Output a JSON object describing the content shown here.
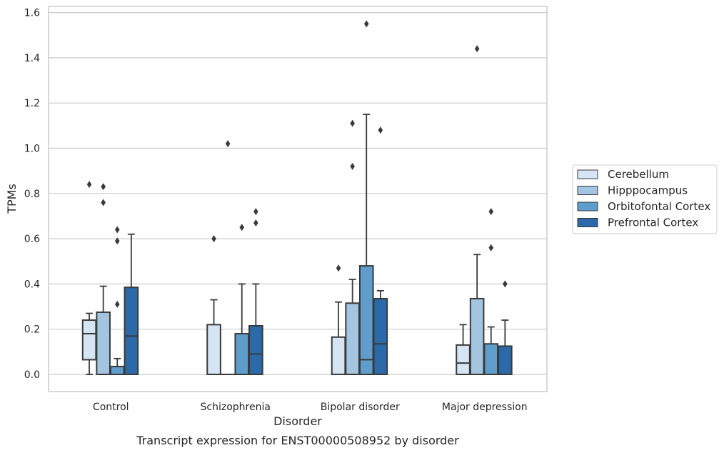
{
  "chart_data": {
    "type": "boxplot",
    "title": "",
    "caption": "Transcript expression for ENST00000508952 by disorder",
    "xlabel": "Disorder",
    "ylabel": "TPMs",
    "ylim": [
      -0.075,
      1.63
    ],
    "yticks": [
      0.0,
      0.2,
      0.4,
      0.6,
      0.8,
      1.0,
      1.2,
      1.4,
      1.6
    ],
    "ytick_labels": [
      "0.0",
      "0.2",
      "0.4",
      "0.6",
      "0.8",
      "1.0",
      "1.2",
      "1.4",
      "1.6"
    ],
    "grid": "horizontal",
    "legend_position": "right",
    "categories": [
      "Control",
      "Schizophrenia",
      "Bipolar disorder",
      "Major depression"
    ],
    "series": [
      {
        "name": "Cerebellum",
        "color": "#d6e5f3",
        "boxes": [
          {
            "whisker_low": 0.0,
            "q1": 0.065,
            "median": 0.18,
            "q3": 0.24,
            "whisker_high": 0.27,
            "outliers": [
              0.84
            ]
          },
          {
            "whisker_low": 0.0,
            "q1": 0.0,
            "median": 0.0,
            "q3": 0.22,
            "whisker_high": 0.33,
            "outliers": [
              0.6
            ]
          },
          {
            "whisker_low": 0.0,
            "q1": 0.0,
            "median": 0.0,
            "q3": 0.165,
            "whisker_high": 0.32,
            "outliers": [
              0.47
            ]
          },
          {
            "whisker_low": 0.0,
            "q1": 0.0,
            "median": 0.05,
            "q3": 0.13,
            "whisker_high": 0.22,
            "outliers": []
          }
        ]
      },
      {
        "name": "Hipppocampus",
        "color": "#a3c5df",
        "boxes": [
          {
            "whisker_low": 0.0,
            "q1": 0.0,
            "median": 0.0,
            "q3": 0.275,
            "whisker_high": 0.39,
            "outliers": [
              0.76,
              0.83
            ]
          },
          {
            "whisker_low": 0.0,
            "q1": 0.0,
            "median": 0.0,
            "q3": 0.0,
            "whisker_high": 0.0,
            "outliers": [
              1.02
            ]
          },
          {
            "whisker_low": 0.0,
            "q1": 0.0,
            "median": 0.0,
            "q3": 0.315,
            "whisker_high": 0.42,
            "outliers": [
              0.92,
              1.11
            ]
          },
          {
            "whisker_low": 0.0,
            "q1": 0.0,
            "median": 0.0,
            "q3": 0.335,
            "whisker_high": 0.53,
            "outliers": [
              1.44
            ]
          }
        ]
      },
      {
        "name": "Orbitofontal Cortex",
        "color": "#5e9dcc",
        "boxes": [
          {
            "whisker_low": 0.0,
            "q1": 0.0,
            "median": 0.0,
            "q3": 0.035,
            "whisker_high": 0.07,
            "outliers": [
              0.31,
              0.59,
              0.64
            ]
          },
          {
            "whisker_low": 0.0,
            "q1": 0.0,
            "median": 0.0,
            "q3": 0.18,
            "whisker_high": 0.4,
            "outliers": [
              0.65
            ]
          },
          {
            "whisker_low": 0.0,
            "q1": 0.0,
            "median": 0.065,
            "q3": 0.48,
            "whisker_high": 1.15,
            "outliers": [
              1.55
            ]
          },
          {
            "whisker_low": 0.0,
            "q1": 0.0,
            "median": 0.0,
            "q3": 0.135,
            "whisker_high": 0.21,
            "outliers": [
              0.56,
              0.72
            ]
          }
        ]
      },
      {
        "name": "Prefrontal Cortex",
        "color": "#2b69a8",
        "boxes": [
          {
            "whisker_low": 0.0,
            "q1": 0.0,
            "median": 0.17,
            "q3": 0.385,
            "whisker_high": 0.62,
            "outliers": []
          },
          {
            "whisker_low": 0.0,
            "q1": 0.0,
            "median": 0.09,
            "q3": 0.215,
            "whisker_high": 0.4,
            "outliers": [
              0.67,
              0.72
            ]
          },
          {
            "whisker_low": 0.0,
            "q1": 0.0,
            "median": 0.135,
            "q3": 0.335,
            "whisker_high": 0.37,
            "outliers": [
              1.08
            ]
          },
          {
            "whisker_low": 0.0,
            "q1": 0.0,
            "median": 0.0,
            "q3": 0.125,
            "whisker_high": 0.24,
            "outliers": [
              0.4
            ]
          }
        ]
      }
    ],
    "colors": {
      "axes_edge": "#cccccc",
      "grid": "#cccccc",
      "box_edge": "#3a3a3a"
    }
  }
}
